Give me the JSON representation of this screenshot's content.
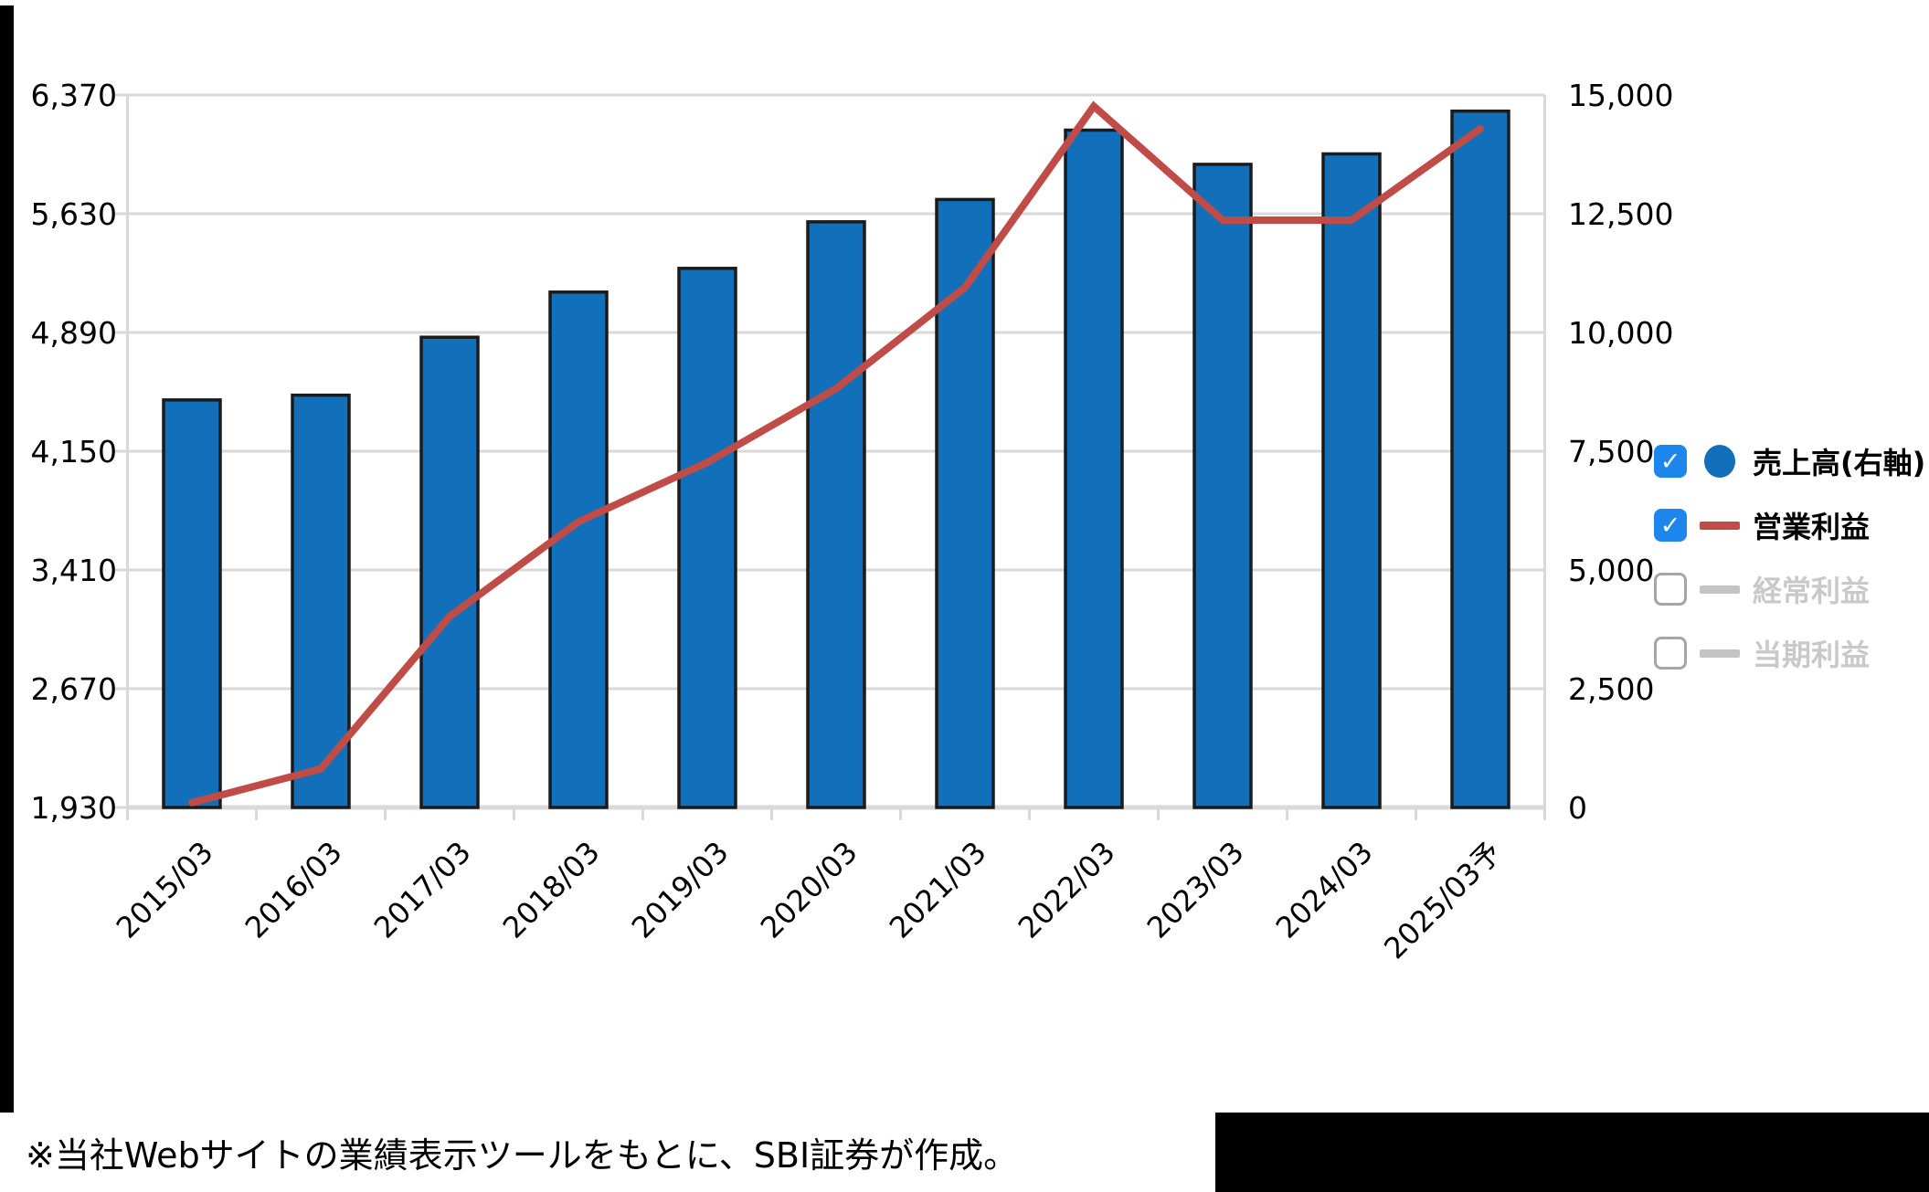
{
  "chart_data": {
    "type": "bar",
    "subtype": "bar-line-combo",
    "categories": [
      "2015/03",
      "2016/03",
      "2017/03",
      "2018/03",
      "2019/03",
      "2020/03",
      "2021/03",
      "2022/03",
      "2023/03",
      "2024/03",
      "2025/03予"
    ],
    "series": [
      {
        "name": "売上高(右軸)",
        "type": "bar",
        "axis": "right",
        "color": "#1170b9",
        "values": [
          8580,
          8680,
          9900,
          10850,
          11350,
          12330,
          12800,
          14260,
          13540,
          13760,
          14660
        ]
      },
      {
        "name": "営業利益",
        "type": "line",
        "axis": "left",
        "color": "#bf4c47",
        "values": [
          1960,
          2170,
          3120,
          3710,
          4080,
          4540,
          5170,
          6300,
          5590,
          5590,
          6160
        ]
      }
    ],
    "left_axis": {
      "min": 1930,
      "max": 6370,
      "ticks": [
        "6,370",
        "5,630",
        "4,890",
        "4,150",
        "3,410",
        "2,670",
        "1,930"
      ]
    },
    "right_axis": {
      "min": 0,
      "max": 15000,
      "ticks": [
        "15,000",
        "12,500",
        "10,000",
        "7,500",
        "5,000",
        "2,500",
        "0"
      ]
    },
    "grid": true,
    "legend_position": "right",
    "colors": {
      "grid": "#d9d9d9",
      "bar_border": "#1b1b1b"
    }
  },
  "legend": {
    "items": [
      {
        "label": "売上高(右軸)",
        "checked": true,
        "marker": "circle",
        "marker_color": "#1170b9",
        "text_color": "#000000"
      },
      {
        "label": "営業利益",
        "checked": true,
        "marker": "line",
        "marker_color": "#bf4c47",
        "text_color": "#000000"
      },
      {
        "label": "経常利益",
        "checked": false,
        "marker": "line",
        "marker_color": "#c4c4c4",
        "text_color": "#c9c9c9"
      },
      {
        "label": "当期利益",
        "checked": false,
        "marker": "line",
        "marker_color": "#c4c4c4",
        "text_color": "#c9c9c9"
      }
    ],
    "checkbox_color": "#1d86ec"
  },
  "footer": {
    "note": "※当社Webサイトの業績表示ツールをもとに、SBI証券が作成。"
  }
}
